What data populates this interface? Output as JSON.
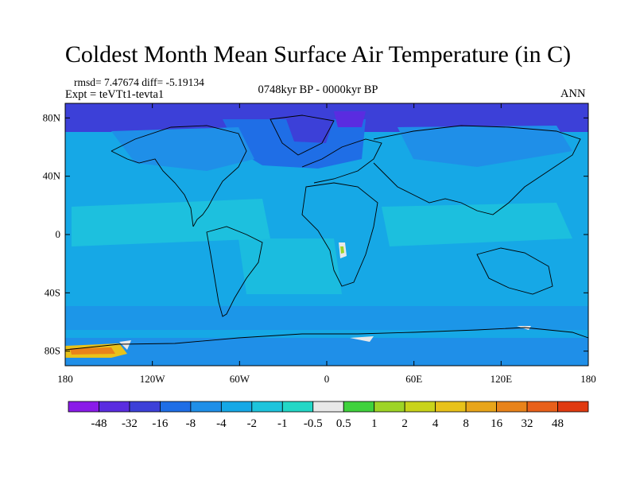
{
  "title": "Coldest Month Mean Surface Air Temperature (in C)",
  "stats_line": "rmsd= 7.47674 diff= -5.19134",
  "experiment_line": "Expt = teVTt1-tevta1",
  "period_label": "0748kyr BP - 0000kyr BP",
  "season_label": "ANN",
  "map": {
    "projection": "cylindrical equidistant",
    "lon_range": [
      -180,
      180
    ],
    "lat_range": [
      -90,
      90
    ],
    "lat_ticks": [
      {
        "value": 80,
        "label": "80N"
      },
      {
        "value": 40,
        "label": "40N"
      },
      {
        "value": 0,
        "label": "0"
      },
      {
        "value": -40,
        "label": "40S"
      },
      {
        "value": -80,
        "label": "80S"
      }
    ],
    "lon_ticks": [
      {
        "value": -180,
        "label": "180"
      },
      {
        "value": -120,
        "label": "120W"
      },
      {
        "value": -60,
        "label": "60W"
      },
      {
        "value": 0,
        "label": "0"
      },
      {
        "value": 60,
        "label": "60E"
      },
      {
        "value": 120,
        "label": "120E"
      },
      {
        "value": 180,
        "label": "180"
      }
    ]
  },
  "colorbar": {
    "colors": [
      "#8a1be8",
      "#5a2ce0",
      "#3c40d8",
      "#1f6ee6",
      "#1f8fe8",
      "#16a8e6",
      "#1ec4dc",
      "#23d7c6",
      "#e8e8e8",
      "#3fd23c",
      "#9ed426",
      "#c9d31a",
      "#e8c21a",
      "#e8a51a",
      "#e8831a",
      "#e8601a",
      "#e03a10"
    ],
    "labels": [
      "-48",
      "-32",
      "-16",
      "-8",
      "-4",
      "-2",
      "-1",
      "-0.5",
      "0.5",
      "1",
      "2",
      "4",
      "8",
      "16",
      "32",
      "48"
    ]
  }
}
